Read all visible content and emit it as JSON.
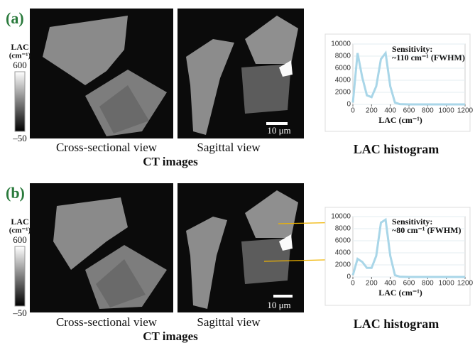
{
  "panels": [
    {
      "label": "(a)",
      "colorbar": {
        "title": "LAC",
        "unit": "(cm⁻¹)",
        "max": 600,
        "min": {
          "value": -50,
          "label": "–50"
        }
      },
      "views": [
        "Cross-sectional view",
        "Sagittal view"
      ],
      "scale_bar": "10 μm",
      "images_caption": "CT images",
      "histogram_caption": "LAC histogram"
    },
    {
      "label": "(b)",
      "colorbar": {
        "title": "LAC",
        "unit": "(cm⁻¹)",
        "max": 600,
        "min": {
          "value": -50,
          "label": "–50"
        }
      },
      "views": [
        "Cross-sectional view",
        "Sagittal view"
      ],
      "scale_bar": "10 μm",
      "images_caption": "CT images",
      "histogram_caption": "LAC histogram"
    }
  ],
  "chart_data": [
    {
      "type": "line",
      "xlabel": "LAC (cm⁻¹)",
      "annotation": [
        "Sensitivity:",
        "~110 cm⁻¹ (FWHM)"
      ],
      "x": [
        0,
        50,
        100,
        150,
        200,
        250,
        300,
        350,
        400,
        450,
        500,
        600,
        800,
        1000,
        1200
      ],
      "series": [
        {
          "color": "#a9d6e8",
          "values": [
            300,
            8500,
            4500,
            1500,
            1200,
            3000,
            7500,
            8500,
            3000,
            300,
            50,
            0,
            0,
            0,
            0
          ]
        }
      ],
      "xlim": [
        0,
        1200
      ],
      "ylim": [
        0,
        10000
      ],
      "xticks": [
        0,
        200,
        400,
        600,
        800,
        1000,
        1200
      ],
      "yticks": [
        0,
        2000,
        4000,
        6000,
        8000,
        10000
      ],
      "grid": true
    },
    {
      "type": "line",
      "xlabel": "LAC (cm⁻¹)",
      "annotation": [
        "Sensitivity:",
        "~80 cm⁻¹ (FWHM)"
      ],
      "x": [
        0,
        50,
        100,
        150,
        200,
        250,
        300,
        350,
        400,
        450,
        500,
        600,
        800,
        1000,
        1200
      ],
      "series": [
        {
          "color": "#a9d6e8",
          "values": [
            300,
            3000,
            2500,
            1500,
            1500,
            3500,
            9000,
            9500,
            3500,
            300,
            50,
            0,
            0,
            0,
            0
          ]
        }
      ],
      "xlim": [
        0,
        1200
      ],
      "ylim": [
        0,
        10000
      ],
      "xticks": [
        0,
        200,
        400,
        600,
        800,
        1000,
        1200
      ],
      "yticks": [
        0,
        2000,
        4000,
        6000,
        8000,
        10000
      ],
      "grid": true
    }
  ]
}
